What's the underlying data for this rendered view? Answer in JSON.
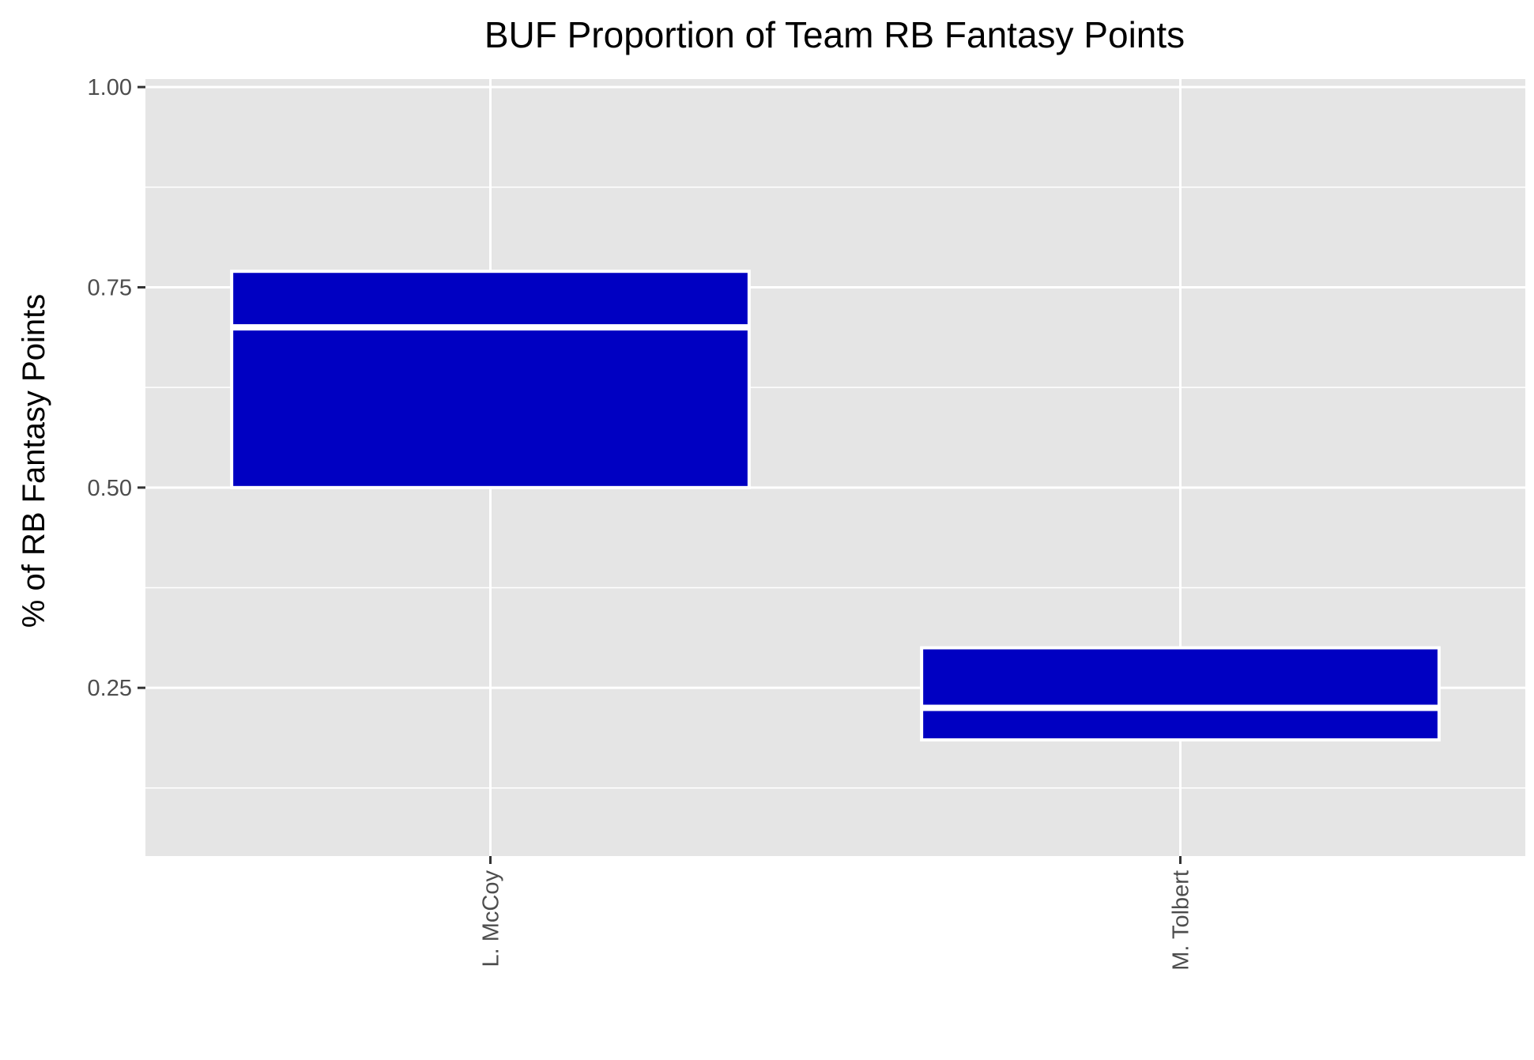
{
  "chart_data": {
    "type": "boxplot",
    "title": "BUF Proportion of Team RB Fantasy Points",
    "xlabel": "",
    "ylabel": "% of RB Fantasy Points",
    "categories": [
      "L. McCoy",
      "M. Tolbert"
    ],
    "boxes": [
      {
        "category": "L. McCoy",
        "q1": 0.5,
        "median": 0.7,
        "q3": 0.77
      },
      {
        "category": "M. Tolbert",
        "q1": 0.185,
        "median": 0.225,
        "q3": 0.3
      }
    ],
    "y_ticks": [
      0.25,
      0.5,
      0.75,
      1.0
    ],
    "y_tick_labels": [
      "0.25",
      "0.50",
      "0.75",
      "1.00"
    ],
    "ylim": [
      0.04,
      1.01
    ],
    "x_tick_rotation": "vertical",
    "grid": true,
    "legend": "none",
    "colors": {
      "box_fill": "#0000c2",
      "box_outline": "#ffffff",
      "panel_background": "#e5e5e5",
      "grid_line": "#ffffff",
      "tick_mark": "#333333",
      "tick_label": "#4d4d4d"
    }
  }
}
